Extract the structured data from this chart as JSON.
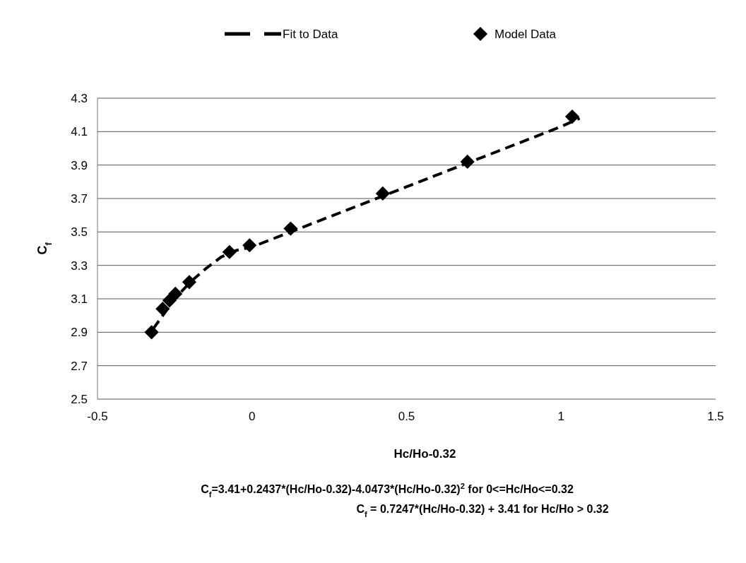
{
  "chart_data": {
    "type": "scatter",
    "xlabel": "Hc/Ho-0.32",
    "ylabel": "C$_{f}$",
    "xlim": [
      -0.5,
      1.5
    ],
    "xticks": [
      -0.5,
      0,
      0.5,
      1,
      1.5
    ],
    "ylim": [
      2.5,
      4.3
    ],
    "yticks": [
      2.5,
      2.7,
      2.9,
      3.1,
      3.3,
      3.5,
      3.7,
      3.9,
      4.1,
      4.3
    ],
    "grid": "y",
    "legend": "top",
    "series": [
      {
        "name": "Fit to Data",
        "type": "line",
        "color": "#000000",
        "line_style": "dashed",
        "x": [
          -0.32,
          -0.25,
          -0.2,
          -0.15,
          -0.1,
          -0.05,
          0,
          0.25,
          0.5,
          0.75,
          1.0,
          1.06
        ],
        "values": [
          2.92,
          3.1,
          3.2,
          3.28,
          3.35,
          3.39,
          3.41,
          3.59,
          3.77,
          3.95,
          4.13,
          4.18
        ]
      },
      {
        "name": "Model Data",
        "color": "#000000",
        "marker": "diamond",
        "x": [
          -0.325,
          -0.289,
          -0.267,
          -0.248,
          -0.203,
          -0.073,
          -0.008,
          0.125,
          0.423,
          0.697,
          1.036
        ],
        "values": [
          2.9,
          3.04,
          3.09,
          3.13,
          3.2,
          3.38,
          3.42,
          3.52,
          3.73,
          3.92,
          4.19
        ]
      }
    ],
    "annotations": [
      "C$_{f}$=3.41+0.2437*(Hc/Ho-0.32)-4.0473*(Hc/Ho-0.32)$^{2}$ for 0<=Hc/Ho<=0.32",
      "C$_{f}$ = 0.7247*(Hc/Ho-0.32) + 3.41 for Hc/Ho > 0.32"
    ]
  }
}
